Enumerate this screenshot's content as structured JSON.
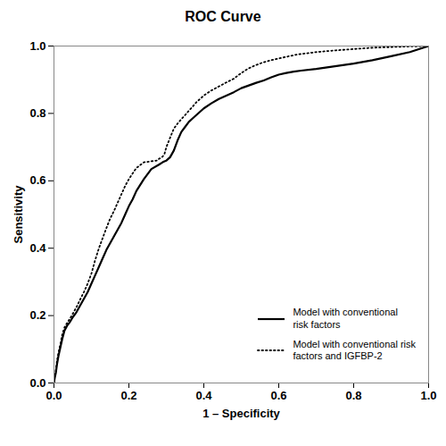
{
  "chart_data": {
    "type": "line",
    "title": "ROC Curve",
    "xlabel": "1 – Specificity",
    "ylabel": "Sensitivity",
    "xlim": [
      0.0,
      1.0
    ],
    "ylim": [
      0.0,
      1.0
    ],
    "xticks": [
      {
        "value": 0.0,
        "label": "0.0"
      },
      0.2,
      0.4,
      0.6,
      0.8,
      {
        "value": 1.0,
        "label": "1.0"
      }
    ],
    "yticks": [
      {
        "value": 0.0,
        "label": "0.0"
      },
      0.2,
      0.4,
      0.6,
      0.8,
      {
        "value": 1.0,
        "label": "1.0"
      }
    ],
    "grid": false,
    "legend": "lower right",
    "series": [
      {
        "name": "Model with conventional\nrisk factors",
        "color": "#000000",
        "line_style": "solid",
        "x": [
          0.0,
          0.002,
          0.005,
          0.008,
          0.012,
          0.018,
          0.022,
          0.028,
          0.035,
          0.042,
          0.05,
          0.06,
          0.07,
          0.08,
          0.09,
          0.1,
          0.11,
          0.12,
          0.13,
          0.14,
          0.15,
          0.16,
          0.17,
          0.18,
          0.19,
          0.2,
          0.21,
          0.22,
          0.24,
          0.26,
          0.28,
          0.29,
          0.295,
          0.3,
          0.31,
          0.32,
          0.33,
          0.34,
          0.35,
          0.36,
          0.37,
          0.38,
          0.4,
          0.42,
          0.44,
          0.46,
          0.48,
          0.5,
          0.52,
          0.54,
          0.56,
          0.58,
          0.6,
          0.62,
          0.64,
          0.66,
          0.7,
          0.75,
          0.8,
          0.85,
          0.9,
          0.95,
          1.0
        ],
        "values": [
          0.0,
          0.015,
          0.03,
          0.055,
          0.08,
          0.11,
          0.13,
          0.155,
          0.17,
          0.18,
          0.195,
          0.21,
          0.23,
          0.25,
          0.27,
          0.295,
          0.32,
          0.345,
          0.37,
          0.395,
          0.415,
          0.435,
          0.455,
          0.475,
          0.5,
          0.525,
          0.545,
          0.57,
          0.605,
          0.635,
          0.648,
          0.655,
          0.658,
          0.66,
          0.67,
          0.69,
          0.72,
          0.745,
          0.76,
          0.775,
          0.785,
          0.795,
          0.815,
          0.83,
          0.843,
          0.853,
          0.863,
          0.875,
          0.883,
          0.891,
          0.898,
          0.907,
          0.915,
          0.92,
          0.924,
          0.927,
          0.932,
          0.94,
          0.948,
          0.958,
          0.97,
          0.982,
          1.0
        ]
      },
      {
        "name": "Model with conventional risk\nfactors and IGFBP-2",
        "color": "#000000",
        "line_style": "dotted",
        "x": [
          0.0,
          0.002,
          0.005,
          0.008,
          0.012,
          0.018,
          0.022,
          0.028,
          0.035,
          0.042,
          0.05,
          0.06,
          0.07,
          0.08,
          0.09,
          0.095,
          0.1,
          0.105,
          0.11,
          0.12,
          0.13,
          0.14,
          0.15,
          0.16,
          0.17,
          0.18,
          0.19,
          0.2,
          0.21,
          0.22,
          0.24,
          0.26,
          0.275,
          0.28,
          0.285,
          0.29,
          0.295,
          0.3,
          0.31,
          0.32,
          0.33,
          0.34,
          0.35,
          0.36,
          0.37,
          0.38,
          0.4,
          0.42,
          0.44,
          0.46,
          0.48,
          0.5,
          0.52,
          0.54,
          0.56,
          0.58,
          0.6,
          0.62,
          0.65,
          0.7,
          0.75,
          0.8,
          0.85,
          0.9,
          0.95,
          1.0
        ],
        "values": [
          0.0,
          0.018,
          0.038,
          0.065,
          0.09,
          0.12,
          0.143,
          0.165,
          0.178,
          0.19,
          0.205,
          0.225,
          0.248,
          0.27,
          0.295,
          0.31,
          0.325,
          0.345,
          0.365,
          0.4,
          0.43,
          0.46,
          0.488,
          0.51,
          0.535,
          0.56,
          0.585,
          0.605,
          0.622,
          0.638,
          0.655,
          0.658,
          0.66,
          0.665,
          0.668,
          0.672,
          0.68,
          0.7,
          0.728,
          0.755,
          0.77,
          0.783,
          0.795,
          0.808,
          0.82,
          0.833,
          0.853,
          0.868,
          0.88,
          0.892,
          0.903,
          0.92,
          0.934,
          0.944,
          0.952,
          0.958,
          0.963,
          0.968,
          0.975,
          0.982,
          0.987,
          0.991,
          0.995,
          0.997,
          0.999,
          1.0
        ]
      }
    ]
  }
}
